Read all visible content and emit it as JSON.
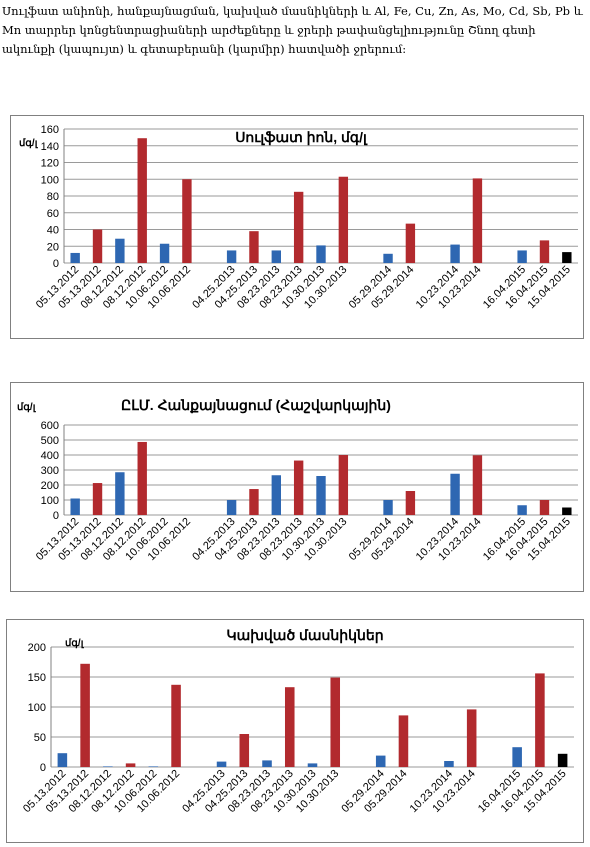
{
  "intro_text": "Սուլֆատ անիոնի, հանքայնացման, կախված մասնիկների և Al, Fe, Cu, Zn, As, Mo, Cd, Sb, Pb և Mn տարրեր կոնցենտրացիաների արժեքները և ջրերի թափանցելիությունը Շնող գետի ակունքի (կապույտ) և գետաբերանի (կարմիր) հատվածի ջրերում:",
  "colors": {
    "source_blue": "#2e67b2",
    "mouth_red": "#b22a2e",
    "last_black": "#000000",
    "grid": "#9a9a9a"
  },
  "chart_data": [
    {
      "type": "bar",
      "title": "Սուլֆատ իոն, մգ/լ",
      "ylabel": "մգ/լ",
      "ylim": [
        0,
        160
      ],
      "yticks": [
        0,
        20,
        40,
        60,
        80,
        100,
        120,
        140,
        160
      ],
      "categories": [
        "05.13.2012",
        "05.13.2012",
        "08.12.2012",
        "08.12.2012",
        "10.06.2012",
        "10.06.2012",
        "",
        "04.25.2013",
        "04.25.2013",
        "08.23.2013",
        "08.23.2013",
        "10.30.2013",
        "10.30.2013",
        "",
        "05.29.2014",
        "05.29.2014",
        "",
        "10.23.2014",
        "10.23.2014",
        "",
        "16.04.2015",
        "16.04.2015",
        "15.04.2015"
      ],
      "values": [
        12,
        40,
        29,
        149,
        23,
        100,
        null,
        15,
        38,
        15,
        85,
        21,
        103,
        null,
        11,
        47,
        null,
        22,
        101,
        null,
        15,
        27,
        13
      ],
      "bar_colors": [
        "b",
        "r",
        "b",
        "r",
        "b",
        "r",
        "",
        "b",
        "r",
        "b",
        "r",
        "b",
        "r",
        "",
        "b",
        "r",
        "",
        "b",
        "r",
        "",
        "b",
        "r",
        "k"
      ]
    },
    {
      "type": "bar",
      "title": "ԸԼՄ. Հանքայնացում  (Հաշվարկային)",
      "ylabel": "մգ/լ",
      "ylim": [
        0,
        600
      ],
      "yticks": [
        0,
        100,
        200,
        300,
        400,
        500,
        600
      ],
      "categories": [
        "05.13.2012",
        "05.13.2012",
        "08.12.2012",
        "08.12.2012",
        "10.06.2012",
        "10.06.2012",
        "",
        "04.25.2013",
        "04.25.2013",
        "08.23.2013",
        "08.23.2013",
        "10.30.2013",
        "10.30.2013",
        "",
        "05.29.2014",
        "05.29.2014",
        "",
        "10.23.2014",
        "10.23.2014",
        "",
        "16.04.2015",
        "16.04.2015",
        "15.04.2015"
      ],
      "values": [
        110,
        213,
        285,
        487,
        null,
        null,
        null,
        100,
        173,
        265,
        363,
        260,
        400,
        null,
        100,
        160,
        null,
        275,
        398,
        null,
        65,
        100,
        50
      ],
      "bar_colors": [
        "b",
        "r",
        "b",
        "r",
        "b",
        "r",
        "",
        "b",
        "r",
        "b",
        "r",
        "b",
        "r",
        "",
        "b",
        "r",
        "",
        "b",
        "r",
        "",
        "b",
        "r",
        "k"
      ]
    },
    {
      "type": "bar",
      "title": "Կախված մասնիկներ",
      "ylabel": "մգ/լ",
      "ylim": [
        0,
        200
      ],
      "yticks": [
        0,
        50,
        100,
        150,
        200
      ],
      "categories": [
        "05.13.2012",
        "05.13.2012",
        "08.12.2012",
        "08.12.2012",
        "10.06.2012",
        "10.06.2012",
        "",
        "04.25.2013",
        "04.25.2013",
        "08.23.2013",
        "08.23.2013",
        "10.30.2013",
        "10.30.2013",
        "",
        "05.29.2014",
        "05.29.2014",
        "",
        "10.23.2014",
        "10.23.2014",
        "",
        "16.04.2015",
        "16.04.2015",
        "15.04.2015"
      ],
      "values": [
        23,
        172,
        1,
        6,
        1,
        137,
        null,
        9,
        55,
        11,
        133,
        6,
        149,
        null,
        19,
        86,
        null,
        10,
        96,
        null,
        33,
        156,
        22
      ],
      "bar_colors": [
        "b",
        "r",
        "b",
        "r",
        "b",
        "r",
        "",
        "b",
        "r",
        "b",
        "r",
        "b",
        "r",
        "",
        "b",
        "r",
        "",
        "b",
        "r",
        "",
        "b",
        "r",
        "k"
      ]
    }
  ]
}
